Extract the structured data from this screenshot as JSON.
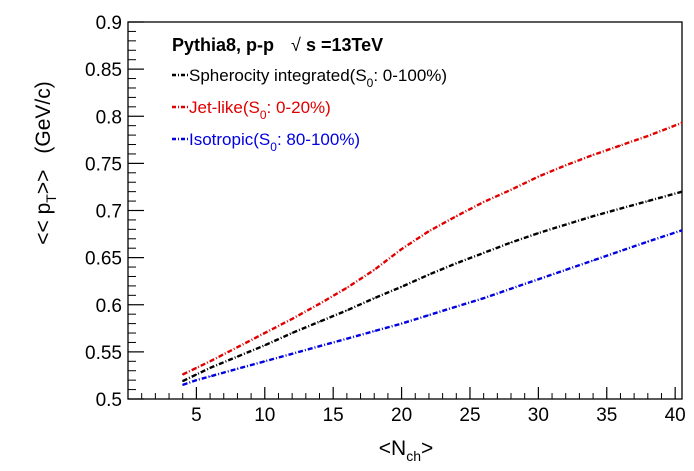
{
  "chart_data": {
    "type": "line",
    "header": {
      "generator": "Pythia8, p-p",
      "sqrt_symbol": "√",
      "energy_var": "s",
      "energy_value": "=13TeV"
    },
    "xlabel": {
      "prefix": "<N",
      "subscript": "ch",
      "suffix": ">"
    },
    "ylabel": {
      "prefix": "<< p",
      "subscript": "T",
      "suffix": ">>",
      "unit": "(GeV/c)"
    },
    "xlim": [
      0,
      40.5
    ],
    "ylim": [
      0.5,
      0.9
    ],
    "xticks": [
      5,
      10,
      15,
      20,
      25,
      30,
      35,
      40
    ],
    "yticks": [
      0.5,
      0.55,
      0.6,
      0.65,
      0.7,
      0.75,
      0.8,
      0.85,
      0.9
    ],
    "xtick_labels": [
      "5",
      "10",
      "15",
      "20",
      "25",
      "30",
      "35",
      "40"
    ],
    "ytick_labels": [
      "0.5",
      "0.55",
      "0.6",
      "0.65",
      "0.7",
      "0.75",
      "0.8",
      "0.85",
      "0.9"
    ],
    "series": [
      {
        "name": "Spherocity integrated",
        "legend": {
          "main": "Spherocity integrated(S",
          "sub": "0",
          "rest": ": 0-100%)"
        },
        "color": "#000000",
        "x": [
          4,
          5,
          6,
          8,
          10,
          12,
          14,
          16,
          18,
          20,
          22,
          24,
          26,
          28,
          30,
          32,
          34,
          36,
          38,
          40.5
        ],
        "y": [
          0.519,
          0.526,
          0.533,
          0.545,
          0.557,
          0.57,
          0.582,
          0.594,
          0.607,
          0.619,
          0.632,
          0.644,
          0.655,
          0.666,
          0.676,
          0.685,
          0.694,
          0.702,
          0.71,
          0.72
        ]
      },
      {
        "name": "Jet-like",
        "legend": {
          "main": "Jet-like(S",
          "sub": "0",
          "rest": ": 0-20%)"
        },
        "color": "#e00000",
        "x": [
          4,
          5,
          6,
          8,
          10,
          12,
          14,
          16,
          18,
          20,
          22,
          24,
          26,
          28,
          30,
          32,
          34,
          36,
          38,
          40.5
        ],
        "y": [
          0.526,
          0.533,
          0.54,
          0.555,
          0.57,
          0.585,
          0.601,
          0.618,
          0.637,
          0.659,
          0.678,
          0.694,
          0.709,
          0.722,
          0.736,
          0.748,
          0.759,
          0.769,
          0.779,
          0.793
        ]
      },
      {
        "name": "Isotropic",
        "legend": {
          "main": "Isotropic(S",
          "sub": "0",
          "rest": ": 80-100%)"
        },
        "color": "#0000e0",
        "x": [
          4,
          5,
          6,
          8,
          10,
          12,
          14,
          16,
          18,
          20,
          22,
          24,
          26,
          28,
          30,
          32,
          34,
          36,
          38,
          40.5
        ],
        "y": [
          0.515,
          0.52,
          0.524,
          0.532,
          0.54,
          0.548,
          0.556,
          0.564,
          0.572,
          0.58,
          0.589,
          0.598,
          0.607,
          0.617,
          0.627,
          0.637,
          0.647,
          0.657,
          0.667,
          0.679
        ]
      }
    ]
  }
}
